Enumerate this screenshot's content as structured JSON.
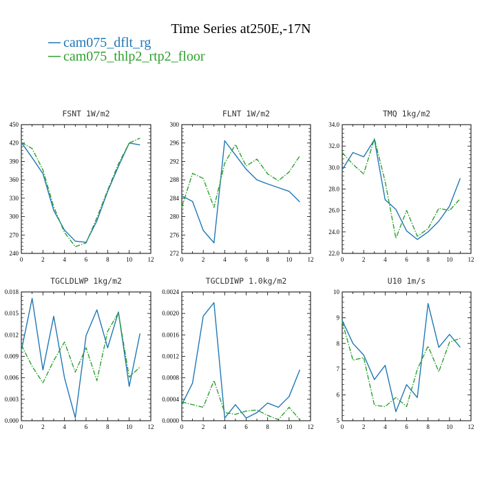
{
  "figure": {
    "title": "Time Series at250E,-17N",
    "legend": [
      {
        "name": "cam075_dflt_rg",
        "color": "#1f77b4",
        "dash": "solid"
      },
      {
        "name": "cam075_thlp2_rtp2_floor",
        "color": "#2ca02c",
        "dash": "dashdot"
      }
    ]
  },
  "chart_data": [
    {
      "type": "line",
      "title": "FSNT   1W/m2",
      "x": [
        0,
        1,
        2,
        3,
        4,
        5,
        6,
        7,
        8,
        9,
        10,
        11
      ],
      "xlim": [
        0,
        12
      ],
      "xticks": [
        0,
        2,
        4,
        6,
        8,
        10,
        12
      ],
      "ylim": [
        240,
        450
      ],
      "yticks": [
        "240",
        "270",
        "300",
        "330",
        "360",
        "390",
        "420",
        "450"
      ],
      "series": [
        {
          "name": "cam075_dflt_rg",
          "values": [
            421,
            396,
            370,
            310,
            278,
            260,
            258,
            293,
            341,
            382,
            420,
            417
          ]
        },
        {
          "name": "cam075_thlp2_rtp2_floor",
          "values": [
            421,
            411,
            376,
            316,
            274,
            251,
            257,
            298,
            343,
            386,
            420,
            428
          ]
        }
      ]
    },
    {
      "type": "line",
      "title": "FLNT   1W/m2",
      "x": [
        0,
        1,
        2,
        3,
        4,
        5,
        6,
        7,
        8,
        9,
        10,
        11
      ],
      "xlim": [
        0,
        12
      ],
      "xticks": [
        0,
        2,
        4,
        6,
        8,
        10,
        12
      ],
      "ylim": [
        272,
        300
      ],
      "yticks": [
        "272",
        "276",
        "280",
        "284",
        "288",
        "292",
        "296",
        "300"
      ],
      "series": [
        {
          "name": "cam075_dflt_rg",
          "values": [
            284.5,
            283.3,
            277.0,
            274.3,
            296.5,
            293.4,
            290.3,
            288.0,
            287.1,
            286.3,
            285.5,
            283.2
          ]
        },
        {
          "name": "cam075_thlp2_rtp2_floor",
          "values": [
            282.0,
            289.4,
            288.3,
            282.0,
            291.6,
            295.7,
            291.0,
            292.5,
            289.3,
            287.8,
            289.7,
            293.2
          ]
        }
      ]
    },
    {
      "type": "line",
      "title": "TMQ   1kg/m2",
      "x": [
        0,
        1,
        2,
        3,
        4,
        5,
        6,
        7,
        8,
        9,
        10,
        11
      ],
      "xlim": [
        0,
        12
      ],
      "xticks": [
        0,
        2,
        4,
        6,
        8,
        10,
        12
      ],
      "ylim": [
        22,
        34
      ],
      "yticks": [
        "22.0",
        "24.0",
        "26.0",
        "28.0",
        "30.0",
        "32.0",
        "34.0"
      ],
      "series": [
        {
          "name": "cam075_dflt_rg",
          "values": [
            29.8,
            31.4,
            31.0,
            32.6,
            27.0,
            26.1,
            24.1,
            23.3,
            24.0,
            25.0,
            26.4,
            29.0
          ]
        },
        {
          "name": "cam075_thlp2_rtp2_floor",
          "values": [
            31.4,
            30.3,
            29.4,
            32.7,
            28.7,
            23.4,
            26.0,
            23.6,
            24.3,
            26.2,
            26.0,
            27.1
          ]
        }
      ]
    },
    {
      "type": "line",
      "title": "TGCLDLWP   1kg/m2",
      "x": [
        0,
        1,
        2,
        3,
        4,
        5,
        6,
        7,
        8,
        9,
        10,
        11
      ],
      "xlim": [
        0,
        12
      ],
      "xticks": [
        0,
        2,
        4,
        6,
        8,
        10,
        12
      ],
      "ylim": [
        0,
        0.018
      ],
      "yticks": [
        "0.000",
        "0.003",
        "0.006",
        "0.009",
        "0.012",
        "0.015",
        "0.018"
      ],
      "series": [
        {
          "name": "cam075_dflt_rg",
          "values": [
            0.0098,
            0.0171,
            0.0071,
            0.0146,
            0.006,
            0.0004,
            0.0119,
            0.0155,
            0.0102,
            0.0152,
            0.0048,
            0.0122
          ]
        },
        {
          "name": "cam075_thlp2_rtp2_floor",
          "values": [
            0.0106,
            0.0076,
            0.0053,
            0.0084,
            0.011,
            0.0068,
            0.0102,
            0.0056,
            0.0125,
            0.0151,
            0.0061,
            0.0075
          ]
        }
      ]
    },
    {
      "type": "line",
      "title": "TGCLDIWP   1.0kg/m2",
      "x": [
        0,
        1,
        2,
        3,
        4,
        5,
        6,
        7,
        8,
        9,
        10,
        11
      ],
      "xlim": [
        0,
        12
      ],
      "xticks": [
        0,
        2,
        4,
        6,
        8,
        10,
        12
      ],
      "ylim": [
        0,
        0.0024
      ],
      "yticks": [
        "0.0000",
        "0.0004",
        "0.0008",
        "0.0012",
        "0.0016",
        "0.0020",
        "0.0024"
      ],
      "series": [
        {
          "name": "cam075_dflt_rg",
          "values": [
            0.0003,
            0.0007,
            0.00195,
            0.0022,
            5e-05,
            0.0003,
            5e-05,
            0.00015,
            0.00033,
            0.00025,
            0.00045,
            0.00095
          ]
        },
        {
          "name": "cam075_thlp2_rtp2_floor",
          "values": [
            0.00035,
            0.0003,
            0.00025,
            0.00075,
            0.00015,
            0.00012,
            0.00018,
            0.0002,
            0.0001,
            2e-05,
            0.00025,
            2e-05
          ]
        }
      ]
    },
    {
      "type": "line",
      "title": "U10   1m/s",
      "x": [
        0,
        1,
        2,
        3,
        4,
        5,
        6,
        7,
        8,
        9,
        10,
        11
      ],
      "xlim": [
        0,
        12
      ],
      "xticks": [
        0,
        2,
        4,
        6,
        8,
        10,
        12
      ],
      "ylim": [
        5,
        10
      ],
      "yticks": [
        "5",
        "6",
        "7",
        "8",
        "9",
        "10"
      ],
      "series": [
        {
          "name": "cam075_dflt_rg",
          "values": [
            8.9,
            8.0,
            7.55,
            6.6,
            7.15,
            5.35,
            6.4,
            5.9,
            9.55,
            7.85,
            8.35,
            7.85
          ]
        },
        {
          "name": "cam075_thlp2_rtp2_floor",
          "values": [
            8.85,
            7.35,
            7.45,
            5.6,
            5.55,
            5.9,
            5.55,
            7.0,
            7.9,
            6.9,
            8.05,
            8.2
          ]
        }
      ]
    }
  ]
}
